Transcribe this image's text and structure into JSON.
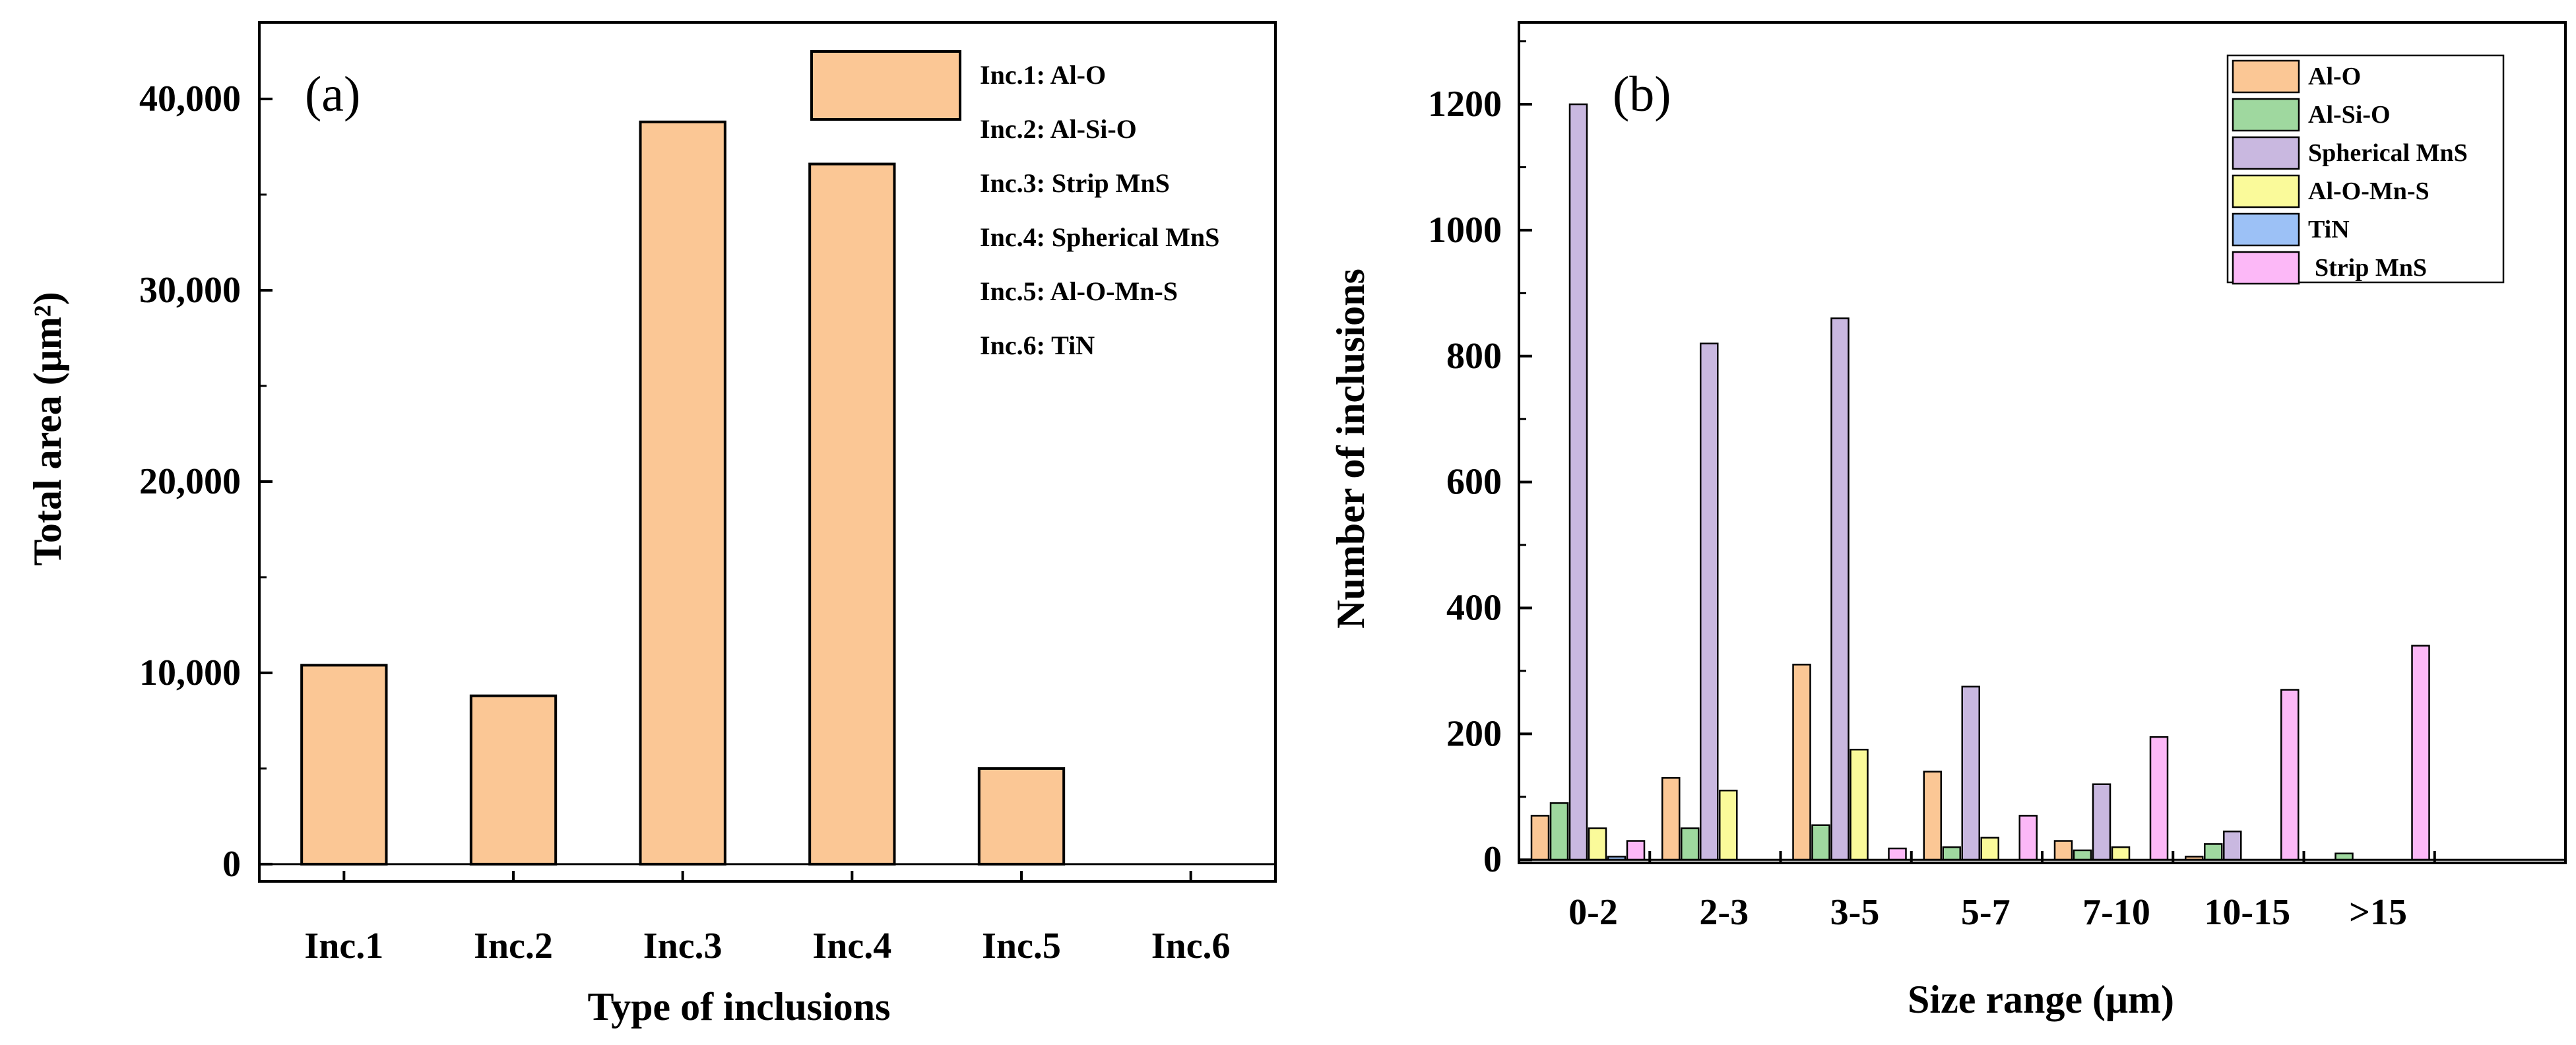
{
  "chart_data": [
    {
      "type": "bar",
      "panel_label": "(a)",
      "xlabel": "Type of inclusions",
      "ylabel": "Total area (μm²)",
      "categories": [
        "Inc.1",
        "Inc.2",
        "Inc.3",
        "Inc.4",
        "Inc.5",
        "Inc.6"
      ],
      "values": [
        10400,
        8800,
        38800,
        36600,
        5000,
        0
      ],
      "yticks": [
        0,
        10000,
        20000,
        30000,
        40000
      ],
      "ytick_labels": [
        "0",
        "10,000",
        "20,000",
        "30,000",
        "40,000"
      ],
      "ylim": [
        -900,
        44000
      ],
      "bar_color": "#fbc795",
      "legend": {
        "position": "top-right",
        "entries": [
          "Inc.1: Al-O",
          "Inc.2: Al-Si-O",
          "Inc.3: Strip MnS",
          "Inc.4: Spherical MnS",
          "Inc.5: Al-O-Mn-S",
          "Inc.6: TiN"
        ]
      }
    },
    {
      "type": "bar",
      "panel_label": "(b)",
      "xlabel": "Size range (μm)",
      "ylabel": "Number of inclusions",
      "categories": [
        "0-2",
        "2-3",
        "3-5",
        "5-7",
        "7-10",
        "10-15",
        ">15"
      ],
      "yticks": [
        0,
        200,
        400,
        600,
        800,
        1000,
        1200
      ],
      "ytick_labels": [
        "0",
        "200",
        "400",
        "600",
        "800",
        "1000",
        "1200"
      ],
      "ylim": [
        -5,
        1330
      ],
      "legend_position": "top-right",
      "series": [
        {
          "name": "Al-O",
          "color": "#fbc795",
          "values": [
            70,
            130,
            310,
            140,
            30,
            5,
            0
          ]
        },
        {
          "name": "Al-Si-O",
          "color": "#9fd89f",
          "values": [
            90,
            50,
            55,
            20,
            15,
            25,
            10
          ]
        },
        {
          "name": "Spherical MnS",
          "color": "#c9b8e0",
          "values": [
            1200,
            820,
            860,
            275,
            120,
            45,
            0
          ]
        },
        {
          "name": "Al-O-Mn-S",
          "color": "#fafa9a",
          "values": [
            50,
            110,
            175,
            35,
            20,
            0,
            0
          ]
        },
        {
          "name": "TiN",
          "color": "#9cc1f6",
          "values": [
            5,
            0,
            0,
            0,
            0,
            0,
            0
          ]
        },
        {
          "name": "Strip MnS",
          "color": "#fcb8f7",
          "values": [
            30,
            0,
            18,
            70,
            195,
            270,
            340
          ]
        }
      ]
    }
  ]
}
